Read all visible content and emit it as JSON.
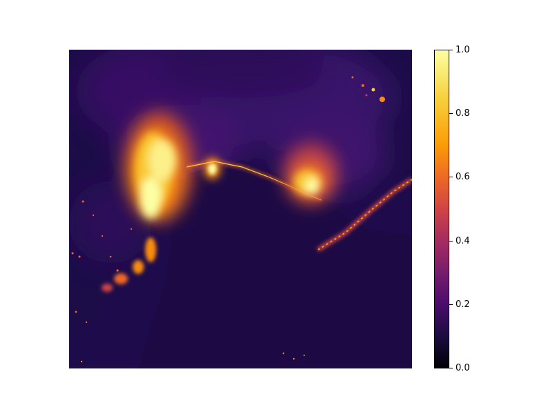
{
  "colormap": "inferno",
  "colorbar": {
    "range": [
      0.0,
      1.0
    ],
    "ticks": [
      "0.0",
      "0.2",
      "0.4",
      "0.6",
      "0.8",
      "1.0"
    ],
    "colors": [
      "#000004",
      "#1b0c41",
      "#4a0c6b",
      "#781c6d",
      "#a52c60",
      "#cf4446",
      "#ed6925",
      "#fb9b06",
      "#f7d13d",
      "#fcffa4"
    ]
  },
  "image": {
    "subject": "wildfire-thermal-heatmap",
    "background_color": "#1c0d48"
  }
}
